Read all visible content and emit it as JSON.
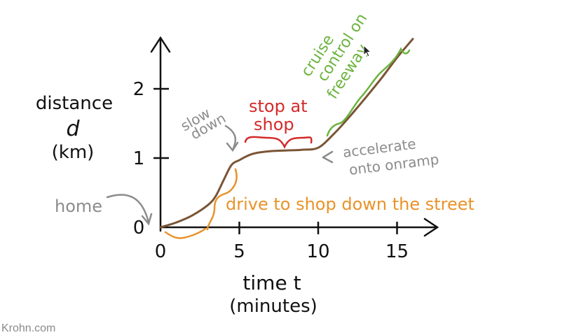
{
  "watermark": "Krohn.com",
  "chart_data": {
    "type": "line",
    "xlabel_line1": "time t",
    "xlabel_line2": "(minutes)",
    "ylabel_line1": "distance",
    "ylabel_line2": "d",
    "ylabel_line3": "(km)",
    "x_ticks": [
      0,
      5,
      10,
      15
    ],
    "y_ticks": [
      0,
      1,
      2
    ],
    "xlim": [
      0,
      17.5
    ],
    "ylim": [
      0,
      2.8
    ],
    "grid": false,
    "series": [
      {
        "color": "#7a5535",
        "x": [
          0,
          1,
          2,
          3,
          3.5,
          4,
          4.5,
          5,
          5.5,
          6,
          7,
          8,
          9,
          10,
          11,
          12,
          13,
          14,
          15,
          16
        ],
        "y": [
          0,
          0.07,
          0.17,
          0.32,
          0.45,
          0.68,
          0.9,
          0.97,
          1.03,
          1.07,
          1.1,
          1.11,
          1.12,
          1.15,
          1.35,
          1.6,
          1.87,
          2.15,
          2.45,
          2.72
        ]
      }
    ],
    "annotations": {
      "home": "home",
      "slow_down_1": "slow",
      "slow_down_2": "down",
      "stop_1": "stop at",
      "stop_2": "shop",
      "accelerate_1": "accelerate",
      "accelerate_2": "onto onramp",
      "drive": "drive to shop down the street",
      "cruise_1": "cruise",
      "cruise_2": "control on",
      "cruise_3": "freeway"
    },
    "colors": {
      "axis": "#111111",
      "curve": "#7a5535",
      "grey_note": "#8c8c8c",
      "red_note": "#d42a2a",
      "orange_note": "#e8932a",
      "green_note": "#6cb33f"
    }
  }
}
